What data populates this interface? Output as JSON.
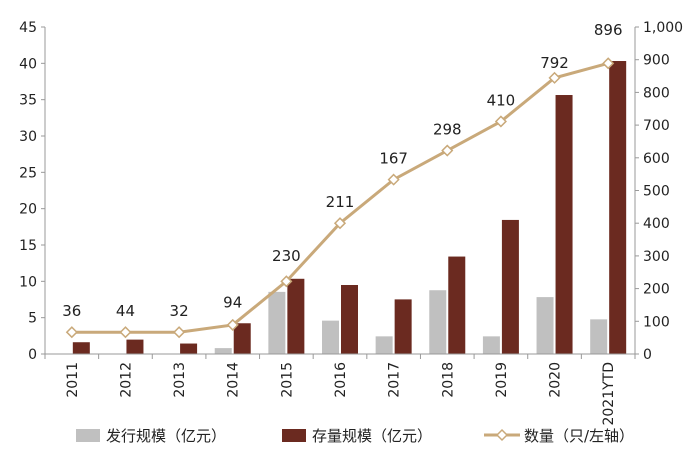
{
  "chart_data": {
    "type": "bar",
    "categories": [
      "2011",
      "2012",
      "2013",
      "2014",
      "2015",
      "2016",
      "2017",
      "2018",
      "2019",
      "2020",
      "2021YTD"
    ],
    "left_axis": {
      "ylim": [
        0,
        45
      ],
      "ticks": [
        "0",
        "5",
        "10",
        "15",
        "20",
        "25",
        "30",
        "35",
        "40",
        "45"
      ]
    },
    "right_axis": {
      "ylim": [
        0,
        1000
      ],
      "ticks": [
        "0",
        "100",
        "200",
        "300",
        "400",
        "500",
        "600",
        "700",
        "800",
        "900",
        "1,000"
      ]
    },
    "series": [
      {
        "name": "发行规模（亿元）",
        "type": "bar",
        "axis": "right",
        "color": "#c0c0c0",
        "values": [
          0,
          0,
          0,
          18,
          190,
          102,
          54,
          195,
          54,
          174,
          106
        ]
      },
      {
        "name": "存量规模（亿元）",
        "type": "bar",
        "axis": "right",
        "color": "#6b2a20",
        "values": [
          36,
          44,
          32,
          94,
          230,
          211,
          167,
          298,
          410,
          792,
          896
        ]
      },
      {
        "name": "数量（只/左轴）",
        "type": "line",
        "axis": "left",
        "color": "#c9a97a",
        "marker": "diamond",
        "values": [
          3,
          3,
          3,
          4,
          10,
          18,
          24,
          28,
          32,
          38,
          40
        ]
      }
    ],
    "data_labels": [
      "36",
      "44",
      "32",
      "94",
      "230",
      "211",
      "167",
      "298",
      "410",
      "792",
      "896"
    ],
    "legend_position": "bottom",
    "grid": false
  }
}
